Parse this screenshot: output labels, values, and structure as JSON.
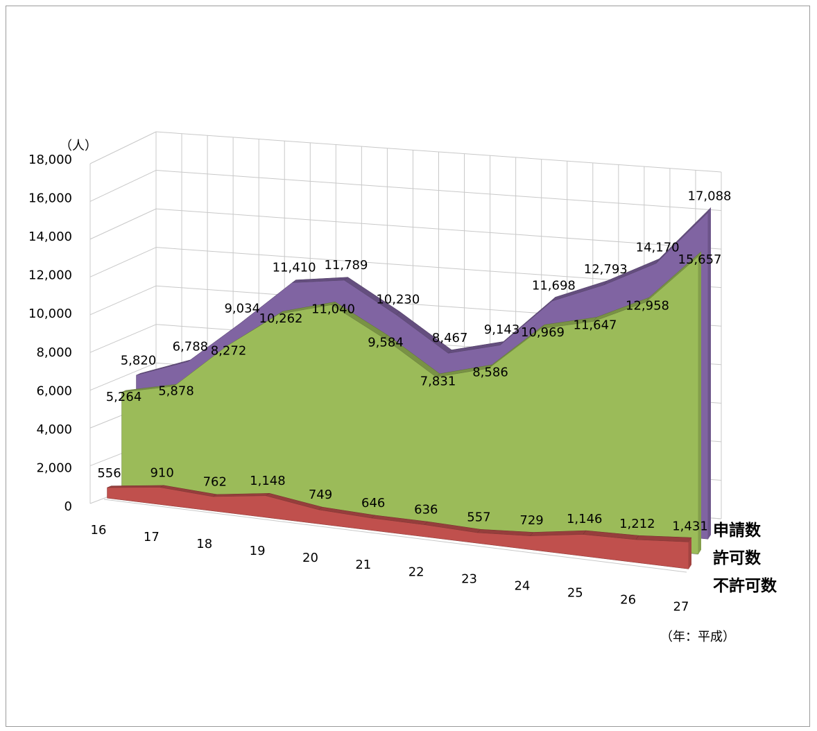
{
  "chart_data": {
    "type": "area",
    "title": "",
    "ylabel": "（人）",
    "xlabel": "（年：平成）",
    "ylim": [
      0,
      18000
    ],
    "yticks": [
      0,
      2000,
      4000,
      6000,
      8000,
      10000,
      12000,
      14000,
      16000,
      18000
    ],
    "ytick_labels": [
      "0",
      "2,000",
      "4,000",
      "6,000",
      "8,000",
      "10,000",
      "12,000",
      "14,000",
      "16,000",
      "18,000"
    ],
    "categories": [
      "16",
      "17",
      "18",
      "19",
      "20",
      "21",
      "22",
      "23",
      "24",
      "25",
      "26",
      "27"
    ],
    "grid": true,
    "legend_placement": "right",
    "series": [
      {
        "name": "申請数",
        "color": "#8064a2",
        "values": [
          5820,
          6788,
          9034,
          11410,
          11789,
          10230,
          8467,
          9143,
          11698,
          12793,
          14170,
          17088
        ],
        "labels": [
          "5,820",
          "6,788",
          "9,034",
          "11,410",
          "11,789",
          "10,230",
          "8,467",
          "9,143",
          "11,698",
          "12,793",
          "14,170",
          "17,088"
        ]
      },
      {
        "name": "許可数",
        "color": "#9bbb59",
        "values": [
          5264,
          5878,
          8272,
          10262,
          11040,
          9584,
          7831,
          8586,
          10969,
          11647,
          12958,
          15657
        ],
        "labels": [
          "5,264",
          "5,878",
          "8,272",
          "10,262",
          "11,040",
          "9,584",
          "7,831",
          "8,586",
          "10,969",
          "11,647",
          "12,958",
          "15,657"
        ]
      },
      {
        "name": "不許可数",
        "color": "#c0504d",
        "values": [
          556,
          910,
          762,
          1148,
          749,
          646,
          636,
          557,
          729,
          1146,
          1212,
          1431
        ],
        "labels": [
          "556",
          "910",
          "762",
          "1,148",
          "749",
          "646",
          "636",
          "557",
          "729",
          "1,146",
          "1,212",
          "1,431"
        ]
      }
    ]
  }
}
